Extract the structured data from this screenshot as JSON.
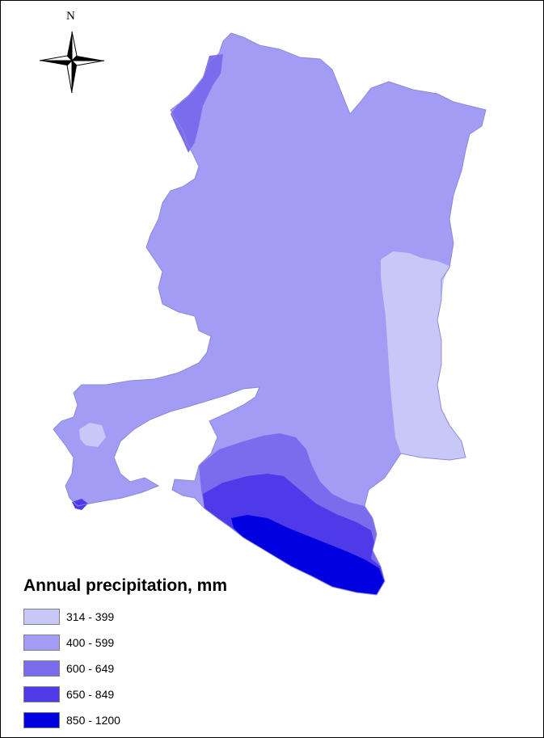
{
  "north_arrow": {
    "label": "N",
    "icon": "compass-rose-icon"
  },
  "legend": {
    "title": "Annual precipitation, mm",
    "items": [
      {
        "label": "314 - 399",
        "color": "#c8c8f8"
      },
      {
        "label": "400 - 599",
        "color": "#a29cf4"
      },
      {
        "label": "600 - 649",
        "color": "#7b6cee"
      },
      {
        "label": "650 - 849",
        "color": "#4f3aea"
      },
      {
        "label": "850 - 1200",
        "color": "#0000e0"
      }
    ]
  },
  "colors": {
    "background": "#ffffff",
    "frame": "#000000"
  }
}
